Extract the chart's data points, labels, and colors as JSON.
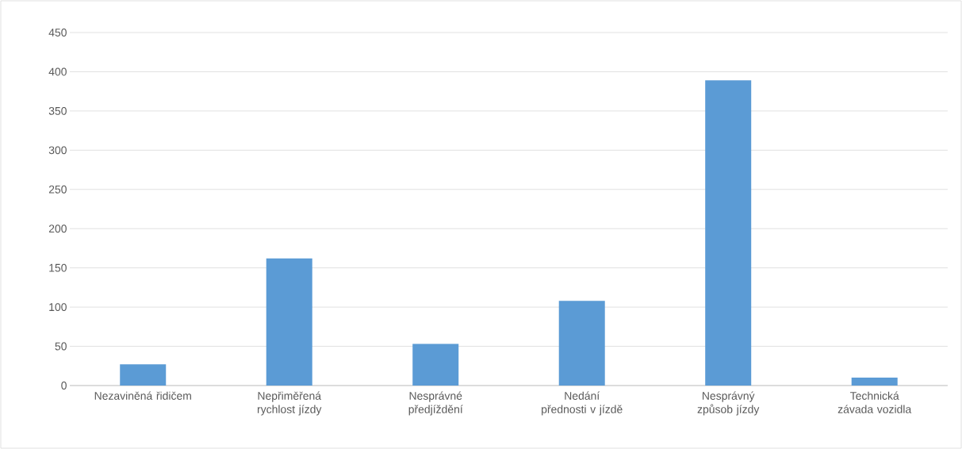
{
  "chart_data": {
    "type": "bar",
    "categories": [
      "Nezaviněná řidičem",
      "Nepřiměřená rychlost jízdy",
      "Nesprávné předjíždění",
      "Nedání přednosti v jízdě",
      "Nesprávný způsob jízdy",
      "Technická závada vozidla"
    ],
    "values": [
      27,
      162,
      53,
      108,
      389,
      10
    ],
    "color": "#5b9bd5",
    "ylim": [
      0,
      450
    ],
    "yticks": [
      0,
      50,
      100,
      150,
      200,
      250,
      300,
      350,
      400,
      450
    ],
    "grid": "y"
  }
}
